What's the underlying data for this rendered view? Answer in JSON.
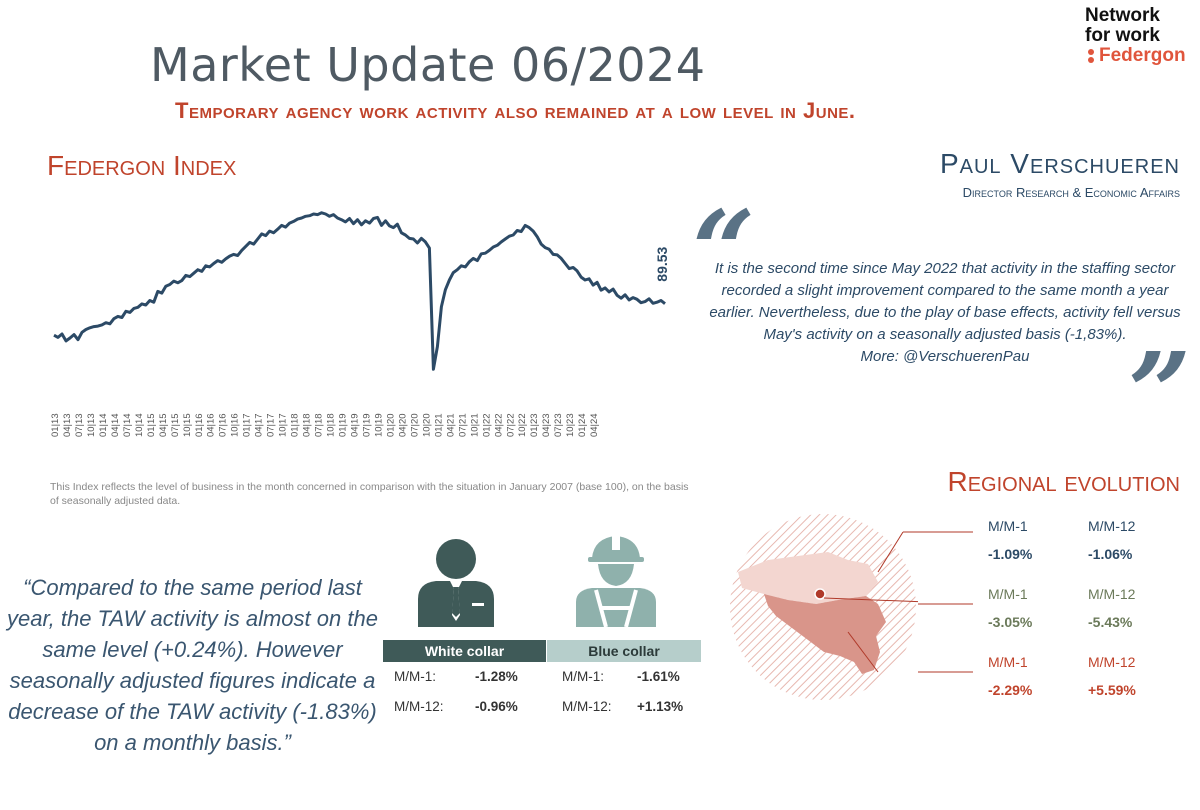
{
  "header": {
    "title": "Market Update 06/2024",
    "subtitle": "Temporary agency work activity also remained at a low level in June."
  },
  "logo": {
    "line1": "Network",
    "line2": "for work",
    "line3": "Federgon"
  },
  "index_section": {
    "heading": "Federgon Index",
    "footnote": "This Index reflects the level of business in the month concerned in comparison with the situation in January 2007 (base 100), on the basis of seasonally adjusted data."
  },
  "director": {
    "name": "Paul Verschueren",
    "role": "Director Research & Economic Affairs",
    "open_quote": "“",
    "close_quote": "”",
    "statement": "It is the second time since May 2022 that activity in the staffing sector recorded a slight improvement compared to the same month a year earlier. Nevertheless, due to the play of base effects, activity fell versus May's activity on a seasonally adjusted basis (-1,83%).",
    "more": "More: @VerschuerenPau"
  },
  "big_quote": "“Compared to the same period last year, the TAW activity is almost on the same level (+0.24%). However seasonally adjusted figures indicate a decrease of the TAW activity (-1.83%) on a monthly basis.”",
  "collars": {
    "white": {
      "label": "White collar",
      "row1_label": "M/M-1:",
      "row1_value": "-1.28%",
      "row2_label": "M/M-12:",
      "row2_value": "-0.96%"
    },
    "blue": {
      "label": "Blue collar",
      "row1_label": "M/M-1:",
      "row1_value": "-1.61%",
      "row2_label": "M/M-12:",
      "row2_value": "+1.13%"
    }
  },
  "regional": {
    "heading": "Regional evolution",
    "regions": [
      {
        "l1": "M/M-1",
        "v1": "-1.09%",
        "l2": "M/M-12",
        "v2": "-1.06%",
        "color": "#2c4a66"
      },
      {
        "l1": "M/M-1",
        "v1": "-3.05%",
        "l2": "M/M-12",
        "v2": "-5.43%",
        "color": "#6b7a5a"
      },
      {
        "l1": "M/M-1",
        "v1": "-2.29%",
        "l2": "M/M-12",
        "v2": "+5.59%",
        "color": "#c0442c"
      }
    ]
  },
  "colors": {
    "accent": "#c0442c",
    "navy": "#2c4a66",
    "white_collar": "#3f5a58",
    "blue_collar": "#8fb1ac"
  },
  "icons": {
    "white_collar": "businessman-icon",
    "blue_collar": "construction-worker-icon",
    "map": "belgium-map-icon"
  },
  "chart_data": {
    "type": "line",
    "title": "",
    "xlabel": "",
    "ylabel": "",
    "last_label": "89.53",
    "tick_labels": [
      "01|13",
      "04|13",
      "07|13",
      "10|13",
      "01|14",
      "04|14",
      "07|14",
      "10|14",
      "01|15",
      "04|15",
      "07|15",
      "10|15",
      "01|16",
      "04|16",
      "07|16",
      "10|16",
      "01|17",
      "04|17",
      "07|17",
      "10|17",
      "01|18",
      "04|18",
      "07|18",
      "10|18",
      "01|19",
      "04|19",
      "07|19",
      "10|19",
      "01|20",
      "04|20",
      "07|20",
      "10|20",
      "01|21",
      "04|21",
      "07|21",
      "10|21",
      "01|22",
      "04|22",
      "07|22",
      "10|22",
      "01|23",
      "04|23",
      "07|23",
      "10|23",
      "01|24",
      "04|24"
    ],
    "series": [
      {
        "values": [
          84.0,
          83.6,
          84.2,
          83.0,
          83.5,
          84.1,
          83.2,
          84.5,
          85.0,
          85.3,
          85.5,
          85.6,
          85.8,
          86.2,
          86.0,
          86.9,
          87.3,
          87.1,
          88.2,
          88.0,
          88.7,
          88.9,
          89.5,
          89.3,
          90.1,
          89.8,
          91.7,
          91.4,
          92.6,
          92.9,
          93.5,
          93.2,
          93.6,
          94.5,
          94.3,
          94.9,
          95.5,
          95.2,
          96.2,
          96.0,
          96.6,
          97.1,
          96.8,
          97.4,
          97.9,
          98.2,
          98.0,
          98.9,
          99.6,
          100.3,
          100.0,
          100.9,
          101.8,
          101.5,
          102.3,
          102.0,
          102.6,
          103.3,
          103.0,
          103.7,
          104.0,
          104.4,
          104.6,
          104.9,
          105.0,
          105.3,
          105.2,
          105.5,
          105.3,
          104.9,
          105.2,
          104.6,
          104.3,
          103.9,
          104.5,
          103.6,
          104.3,
          103.4,
          104.1,
          103.7,
          104.5,
          104.7,
          103.3,
          104.1,
          103.2,
          102.9,
          103.5,
          102.0,
          101.6,
          101.0,
          100.9,
          100.2,
          101.0,
          100.4,
          99.3,
          78.0,
          82.0,
          89.0,
          92.0,
          93.7,
          95.0,
          95.5,
          96.2,
          96.0,
          96.9,
          97.5,
          97.1,
          98.3,
          98.4,
          98.9,
          99.5,
          99.8,
          100.4,
          100.9,
          101.4,
          101.6,
          102.4,
          102.2,
          103.3,
          102.9,
          102.3,
          101.3,
          100.0,
          99.4,
          99.1,
          98.2,
          98.1,
          97.5,
          96.6,
          95.7,
          95.9,
          95.3,
          94.2,
          93.7,
          93.9,
          92.8,
          93.3,
          91.9,
          92.3,
          91.6,
          92.1,
          91.0,
          90.5,
          91.1,
          90.2,
          90.6,
          90.3,
          89.7,
          89.9,
          90.4,
          89.6,
          89.8,
          90.1,
          89.53
        ]
      }
    ]
  }
}
